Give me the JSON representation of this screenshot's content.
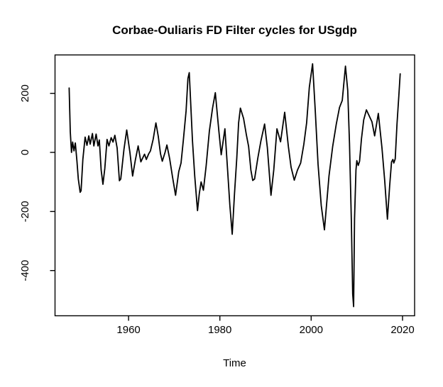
{
  "chart_data": {
    "type": "line",
    "title": "Corbae-Ouliaris FD Filter cycles for USgdp",
    "xlabel": "Time",
    "ylabel": "",
    "series_name": "Corbae-Ouliaris FD filter cycle of USgdp",
    "grid": false,
    "legend": null,
    "line_color": "#000000",
    "background_color": "#ffffff",
    "x_ticks": [
      1960,
      1980,
      2000,
      2020
    ],
    "y_ticks": [
      -400,
      -200,
      0,
      200
    ],
    "xlim": [
      1943.9,
      2022.65
    ],
    "ylim": [
      -553,
      330
    ],
    "points": [
      [
        1947.0,
        218
      ],
      [
        1947.25,
        70
      ],
      [
        1947.5,
        0
      ],
      [
        1947.75,
        35
      ],
      [
        1948.05,
        5
      ],
      [
        1948.35,
        32
      ],
      [
        1948.7,
        -30
      ],
      [
        1949.0,
        -90
      ],
      [
        1949.4,
        -135
      ],
      [
        1949.6,
        -130
      ],
      [
        1950.0,
        -24
      ],
      [
        1950.5,
        52
      ],
      [
        1950.9,
        24
      ],
      [
        1951.3,
        56
      ],
      [
        1951.6,
        28
      ],
      [
        1952.1,
        64
      ],
      [
        1952.4,
        22
      ],
      [
        1952.9,
        62
      ],
      [
        1953.3,
        22
      ],
      [
        1953.6,
        42
      ],
      [
        1954.0,
        -60
      ],
      [
        1954.4,
        -108
      ],
      [
        1954.8,
        -55
      ],
      [
        1955.3,
        44
      ],
      [
        1955.7,
        22
      ],
      [
        1956.2,
        50
      ],
      [
        1956.6,
        35
      ],
      [
        1957.0,
        58
      ],
      [
        1957.5,
        15
      ],
      [
        1958.0,
        -96
      ],
      [
        1958.3,
        -90
      ],
      [
        1959.0,
        10
      ],
      [
        1959.6,
        76
      ],
      [
        1960.3,
        0
      ],
      [
        1960.9,
        -80
      ],
      [
        1961.5,
        -25
      ],
      [
        1962.1,
        22
      ],
      [
        1962.7,
        -32
      ],
      [
        1963.5,
        -6
      ],
      [
        1963.9,
        -24
      ],
      [
        1964.4,
        -5
      ],
      [
        1964.8,
        5
      ],
      [
        1965.4,
        45
      ],
      [
        1966.0,
        100
      ],
      [
        1966.5,
        55
      ],
      [
        1967.0,
        -5
      ],
      [
        1967.4,
        -30
      ],
      [
        1968.0,
        0
      ],
      [
        1968.4,
        25
      ],
      [
        1969.0,
        -20
      ],
      [
        1969.6,
        -80
      ],
      [
        1970.3,
        -145
      ],
      [
        1971.0,
        -65
      ],
      [
        1971.5,
        -36
      ],
      [
        1972.0,
        40
      ],
      [
        1972.6,
        140
      ],
      [
        1973.0,
        250
      ],
      [
        1973.3,
        270
      ],
      [
        1974.0,
        40
      ],
      [
        1974.5,
        -80
      ],
      [
        1975.1,
        -197
      ],
      [
        1975.5,
        -140
      ],
      [
        1975.9,
        -100
      ],
      [
        1976.4,
        -128
      ],
      [
        1977.0,
        -45
      ],
      [
        1977.7,
        72
      ],
      [
        1978.4,
        150
      ],
      [
        1979.0,
        202
      ],
      [
        1979.8,
        70
      ],
      [
        1980.3,
        -8
      ],
      [
        1981.1,
        80
      ],
      [
        1981.7,
        -60
      ],
      [
        1982.2,
        -180
      ],
      [
        1982.7,
        -277
      ],
      [
        1983.2,
        -140
      ],
      [
        1983.7,
        -20
      ],
      [
        1984.1,
        100
      ],
      [
        1984.5,
        150
      ],
      [
        1985.2,
        115
      ],
      [
        1985.8,
        60
      ],
      [
        1986.3,
        20
      ],
      [
        1986.8,
        -60
      ],
      [
        1987.2,
        -95
      ],
      [
        1987.6,
        -90
      ],
      [
        1988.3,
        -20
      ],
      [
        1989.0,
        40
      ],
      [
        1989.8,
        96
      ],
      [
        1990.4,
        16
      ],
      [
        1991.2,
        -145
      ],
      [
        1991.8,
        -60
      ],
      [
        1992.5,
        80
      ],
      [
        1993.3,
        36
      ],
      [
        1994.2,
        136
      ],
      [
        1995.0,
        20
      ],
      [
        1995.6,
        -50
      ],
      [
        1996.3,
        -94
      ],
      [
        1997.0,
        -60
      ],
      [
        1997.7,
        -36
      ],
      [
        1998.4,
        28
      ],
      [
        1999.0,
        100
      ],
      [
        1999.6,
        220
      ],
      [
        2000.3,
        300
      ],
      [
        2000.9,
        140
      ],
      [
        2001.5,
        -40
      ],
      [
        2002.2,
        -180
      ],
      [
        2002.9,
        -262
      ],
      [
        2003.9,
        -80
      ],
      [
        2004.7,
        20
      ],
      [
        2005.5,
        96
      ],
      [
        2006.2,
        152
      ],
      [
        2006.8,
        176
      ],
      [
        2007.5,
        292
      ],
      [
        2008.0,
        210
      ],
      [
        2008.4,
        30
      ],
      [
        2008.8,
        -230
      ],
      [
        2009.1,
        -480
      ],
      [
        2009.3,
        -522
      ],
      [
        2009.5,
        -224
      ],
      [
        2009.8,
        -60
      ],
      [
        2010.0,
        -28
      ],
      [
        2010.3,
        -44
      ],
      [
        2010.6,
        -30
      ],
      [
        2011.0,
        45
      ],
      [
        2011.5,
        110
      ],
      [
        2012.1,
        144
      ],
      [
        2012.7,
        124
      ],
      [
        2013.3,
        104
      ],
      [
        2013.9,
        56
      ],
      [
        2014.7,
        132
      ],
      [
        2015.5,
        16
      ],
      [
        2016.1,
        -96
      ],
      [
        2016.7,
        -226
      ],
      [
        2017.2,
        -112
      ],
      [
        2017.6,
        -32
      ],
      [
        2017.9,
        -24
      ],
      [
        2018.1,
        -36
      ],
      [
        2018.4,
        -22
      ],
      [
        2018.8,
        96
      ],
      [
        2019.2,
        192
      ],
      [
        2019.5,
        266
      ]
    ]
  }
}
